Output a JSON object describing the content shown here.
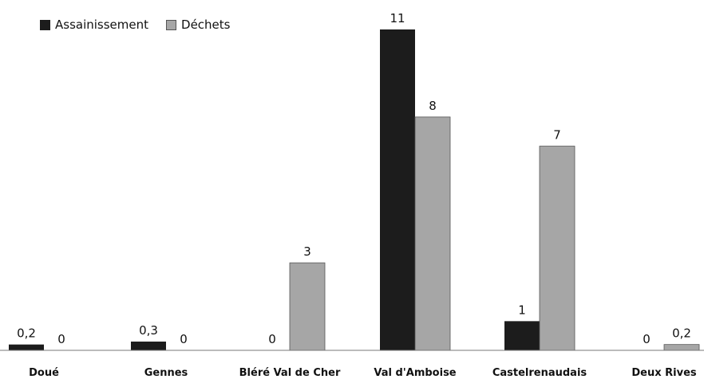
{
  "chart_data": {
    "type": "bar",
    "categories": [
      "Doué",
      "Gennes",
      "Bléré Val de Cher",
      "Val d'Amboise",
      "Castelrenaudais",
      "Deux Rives"
    ],
    "series": [
      {
        "name": "Assainissement",
        "values": [
          0.2,
          0.3,
          0,
          11,
          1,
          0
        ],
        "labels": [
          "0,2",
          "0,3",
          "0",
          "11",
          "1",
          "0"
        ],
        "color": "#1c1c1c"
      },
      {
        "name": "Déchets",
        "values": [
          0,
          0,
          3,
          8,
          7,
          0.2
        ],
        "labels": [
          "0",
          "0",
          "3",
          "8",
          "7",
          "0,2"
        ],
        "color": "#a6a6a6"
      }
    ],
    "title": "",
    "xlabel": "",
    "ylabel": "",
    "ylim": [
      0,
      11
    ],
    "grid": false,
    "legend_position": "top-left"
  }
}
